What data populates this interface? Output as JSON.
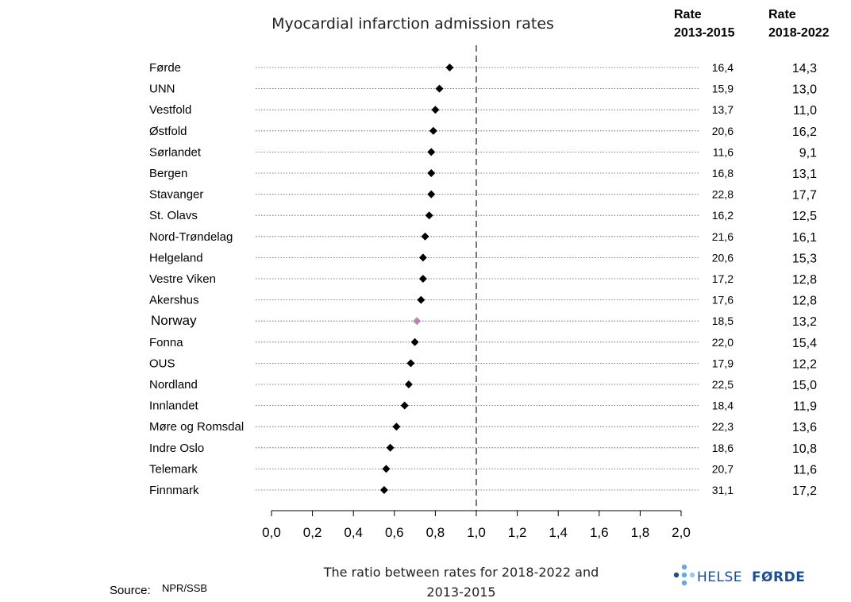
{
  "chart_data": {
    "type": "scatter",
    "title": "Myocardial infarction admission rates",
    "xlabel": "The ratio between rates for 2018-2022 and 2013-2015",
    "xlabel_lines": [
      "The ratio between rates for 2018-2022 and",
      "2013-2015"
    ],
    "xlim": [
      0,
      2
    ],
    "x_ticks": [
      "0,0",
      "0,2",
      "0,4",
      "0,6",
      "0,8",
      "1,0",
      "1,2",
      "1,4",
      "1,6",
      "1,8",
      "2,0"
    ],
    "reference_line": 1.0,
    "column_headers": [
      {
        "line1": "Rate",
        "line2": "2013-2015"
      },
      {
        "line1": "Rate",
        "line2": "2018-2022"
      }
    ],
    "categories": [
      "Førde",
      "UNN",
      "Vestfold",
      "Østfold",
      "Sørlandet",
      "Bergen",
      "Stavanger",
      "St. Olavs",
      "Nord-Trøndelag",
      "Helgeland",
      "Vestre Viken",
      "Akershus",
      "Norway",
      "Fonna",
      "OUS",
      "Nordland",
      "Innlandet",
      "Møre og Romsdal",
      "Indre Oslo",
      "Telemark",
      "Finnmark"
    ],
    "ratios": [
      0.87,
      0.82,
      0.8,
      0.79,
      0.78,
      0.78,
      0.78,
      0.77,
      0.75,
      0.74,
      0.74,
      0.73,
      0.71,
      0.7,
      0.68,
      0.67,
      0.65,
      0.61,
      0.58,
      0.56,
      0.55
    ],
    "rate_2013_2015": [
      "16,4",
      "15,9",
      "13,7",
      "20,6",
      "11,6",
      "16,8",
      "22,8",
      "16,2",
      "21,6",
      "20,6",
      "17,2",
      "17,6",
      "18,5",
      "22,0",
      "17,9",
      "22,5",
      "18,4",
      "22,3",
      "18,6",
      "20,7",
      "31,1"
    ],
    "rate_2018_2022": [
      "14,3",
      "13,0",
      "11,0",
      "16,2",
      "9,1",
      "13,1",
      "17,7",
      "12,5",
      "16,1",
      "15,3",
      "12,8",
      "12,8",
      "13,2",
      "15,4",
      "12,2",
      "15,0",
      "11,9",
      "13,6",
      "10,8",
      "11,6",
      "17,2"
    ],
    "highlight": "Norway",
    "colors": {
      "point": "#000000",
      "highlight": "#b784b7",
      "reference_line": "#777777",
      "gridline": "#555555"
    }
  },
  "source": {
    "label": "Source:",
    "value": "NPR/SSB"
  },
  "logo": {
    "part1": "HELSE",
    "part2": "FØRDE",
    "dot_colors": [
      "#1f4e8c",
      "#6aa7dd",
      "#9cc7ea"
    ]
  }
}
